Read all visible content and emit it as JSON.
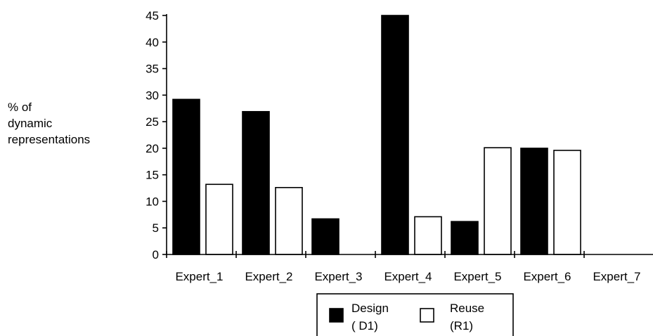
{
  "chart_data": {
    "type": "bar",
    "ylabel_lines": [
      "% of",
      "dynamic",
      "representations"
    ],
    "categories": [
      "Expert_1",
      "Expert_2",
      "Expert_3",
      "Expert_4",
      "Expert_5",
      "Expert_6",
      "Expert_7"
    ],
    "series": [
      {
        "legend_lines": [
          "Design",
          "( D1)"
        ],
        "fill": "#000000",
        "values": [
          29.2,
          26.9,
          6.7,
          45.0,
          6.2,
          20.0,
          0
        ]
      },
      {
        "legend_lines": [
          "Reuse",
          "(R1)"
        ],
        "fill": "#ffffff",
        "values": [
          13.2,
          12.6,
          0,
          7.1,
          20.1,
          19.6,
          0
        ]
      }
    ],
    "yticks": [
      0,
      5,
      10,
      15,
      20,
      25,
      30,
      35,
      40,
      45
    ],
    "ylim": [
      0,
      45
    ],
    "grid": false,
    "legend_position": "bottom-center"
  }
}
